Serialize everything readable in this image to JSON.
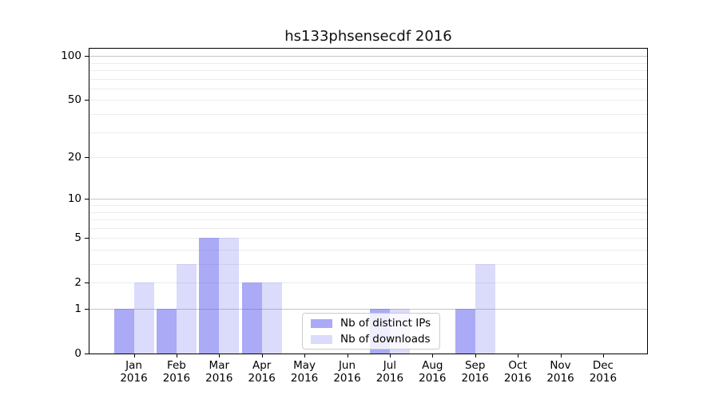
{
  "chart_data": {
    "type": "bar",
    "title": "hs133phsensecdf 2016",
    "categories": [
      "Jan",
      "Feb",
      "Mar",
      "Apr",
      "May",
      "Jun",
      "Jul",
      "Aug",
      "Sep",
      "Oct",
      "Nov",
      "Dec"
    ],
    "x_tick_second_line": "2016",
    "series": [
      {
        "name": "Nb of distinct IPs",
        "color": "rgba(85,85,238,0.5)",
        "values": [
          1,
          1,
          5,
          2,
          0,
          0,
          1,
          0,
          1,
          0,
          0,
          0
        ]
      },
      {
        "name": "Nb of downloads",
        "color": "rgba(85,85,238,0.21)",
        "values": [
          2,
          3,
          5,
          2,
          0,
          0,
          1,
          0,
          3,
          0,
          0,
          0
        ]
      }
    ],
    "yscale": "log1p",
    "ylabel": "",
    "xlabel": "",
    "y_ticks": [
      0,
      1,
      2,
      5,
      10,
      20,
      50,
      100
    ],
    "ylim": [
      0,
      113
    ],
    "grid": {
      "decade_values": [
        1,
        10,
        100
      ],
      "decade_color": "#c6c6c6",
      "minor_values": [
        2,
        3,
        4,
        5,
        6,
        7,
        8,
        9,
        20,
        30,
        40,
        50,
        60,
        70,
        80,
        90
      ],
      "minor_color": "#ececec"
    },
    "legend": {
      "position": "lower-center-inside"
    },
    "axis_color": "#000000"
  }
}
